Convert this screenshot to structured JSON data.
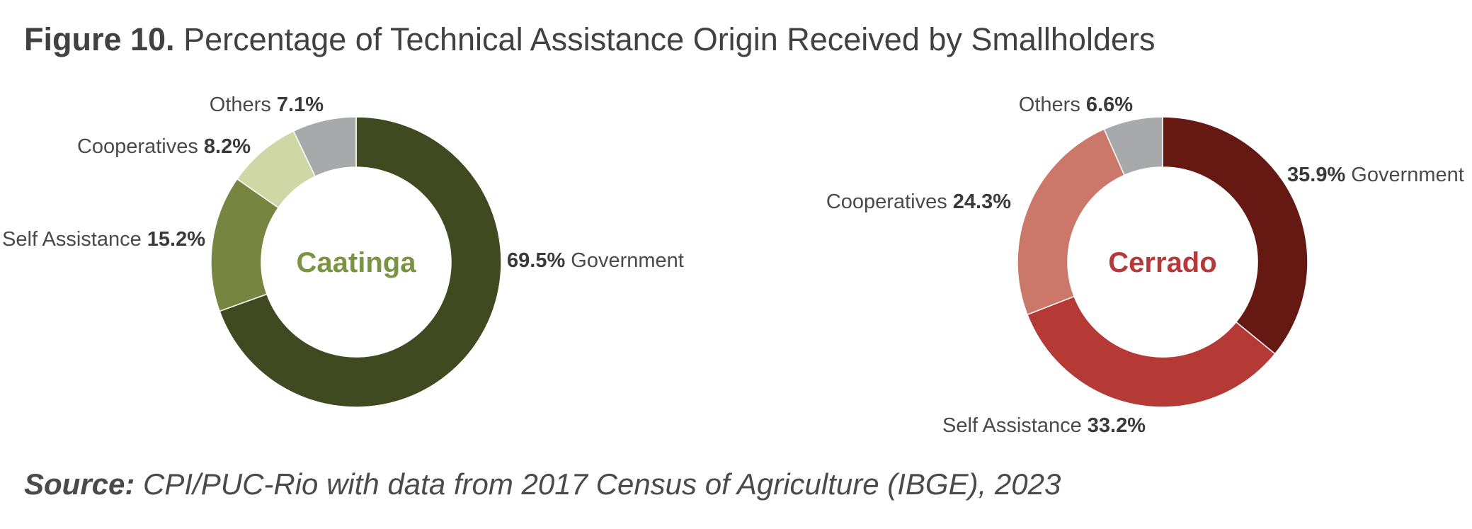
{
  "title": {
    "number": "Figure 10.",
    "text": "Percentage of Technical Assistance Origin Received by Smallholders"
  },
  "source": {
    "label": "Source:",
    "text": "CPI/PUC-Rio with data from 2017 Census of Agriculture (IBGE), 2023"
  },
  "chart_data": [
    {
      "type": "pie",
      "variant": "donut",
      "title": "Caatinga",
      "title_color": "#7a9444",
      "slices": [
        {
          "label": "Government",
          "value": 69.5,
          "value_label": "69.5%",
          "color": "#404a20"
        },
        {
          "label": "Self Assistance",
          "value": 15.2,
          "value_label": "15.2%",
          "color": "#768640"
        },
        {
          "label": "Cooperatives",
          "value": 8.2,
          "value_label": "8.2%",
          "color": "#cfd8a5"
        },
        {
          "label": "Others",
          "value": 7.1,
          "value_label": "7.1%",
          "color": "#a8a9ab"
        }
      ]
    },
    {
      "type": "pie",
      "variant": "donut",
      "title": "Cerrado",
      "title_color": "#b5393a",
      "slices": [
        {
          "label": "Government",
          "value": 35.9,
          "value_label": "35.9%",
          "color": "#661912"
        },
        {
          "label": "Self Assistance",
          "value": 33.2,
          "value_label": "33.2%",
          "color": "#b53a35"
        },
        {
          "label": "Cooperatives",
          "value": 24.3,
          "value_label": "24.3%",
          "color": "#cb776a"
        },
        {
          "label": "Others",
          "value": 6.6,
          "value_label": "6.6%",
          "color": "#a8a9ab"
        }
      ]
    }
  ]
}
